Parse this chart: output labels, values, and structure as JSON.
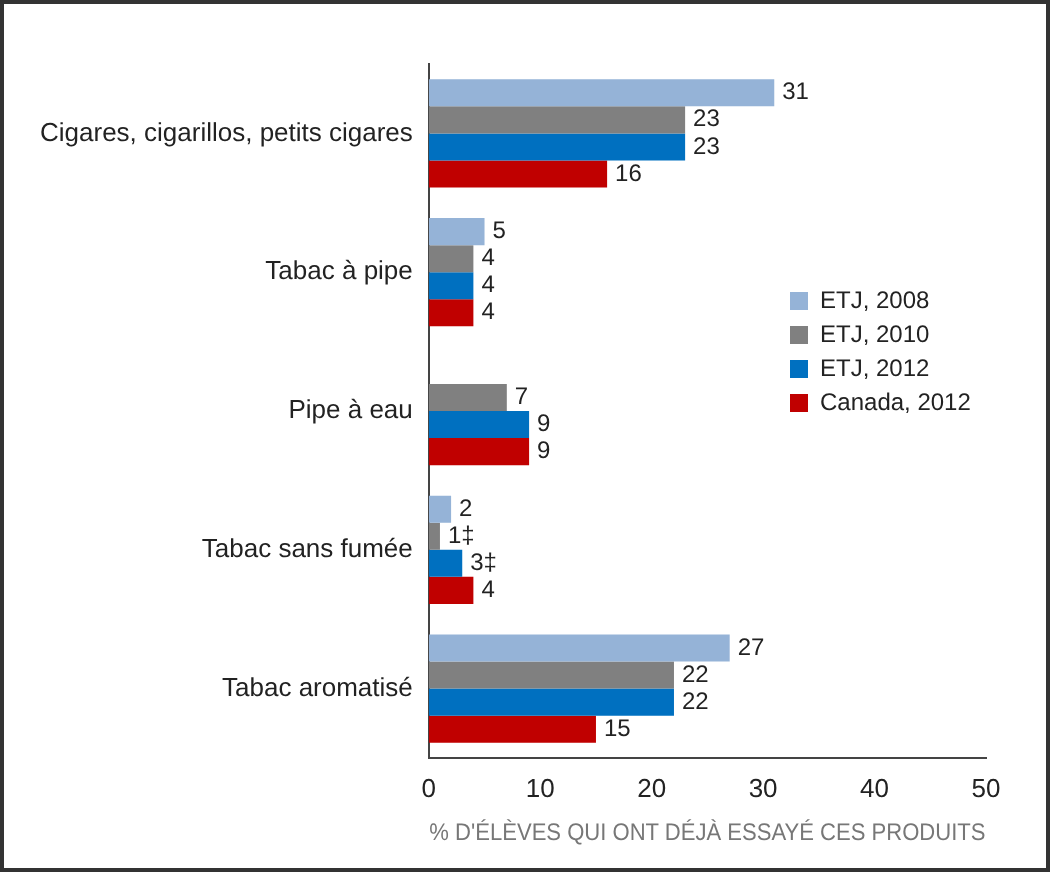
{
  "chart_data": {
    "type": "bar",
    "orientation": "horizontal",
    "xlabel": "% D'ÉLÈVES QUI ONT DÉJÀ ESSAYÉ CES PRODUITS",
    "categories": [
      "Cigares, cigarillos, petits cigares",
      "Tabac à pipe",
      "Pipe à eau",
      "Tabac sans fumée",
      "Tabac aromatisé"
    ],
    "series": [
      {
        "name": "ETJ, 2008",
        "color": "#95b3d7",
        "values": [
          31,
          5,
          null,
          2,
          27
        ],
        "value_labels": [
          "31",
          "5",
          null,
          "2",
          "27"
        ]
      },
      {
        "name": "ETJ, 2010",
        "color": "#808080",
        "values": [
          23,
          4,
          7,
          1,
          22
        ],
        "value_labels": [
          "23",
          "4",
          "7",
          "1‡",
          "22"
        ]
      },
      {
        "name": "ETJ, 2012",
        "color": "#0070c0",
        "values": [
          23,
          4,
          9,
          3,
          22
        ],
        "value_labels": [
          "23",
          "4",
          "9",
          "3‡",
          "22"
        ]
      },
      {
        "name": "Canada, 2012",
        "color": "#c00000",
        "values": [
          16,
          4,
          9,
          4,
          15
        ],
        "value_labels": [
          "16",
          "4",
          "9",
          "4",
          "15"
        ]
      }
    ],
    "xlim": [
      0,
      50
    ],
    "xticks": [
      0,
      10,
      20,
      30,
      40,
      50
    ],
    "grid": false,
    "legend": "right"
  }
}
